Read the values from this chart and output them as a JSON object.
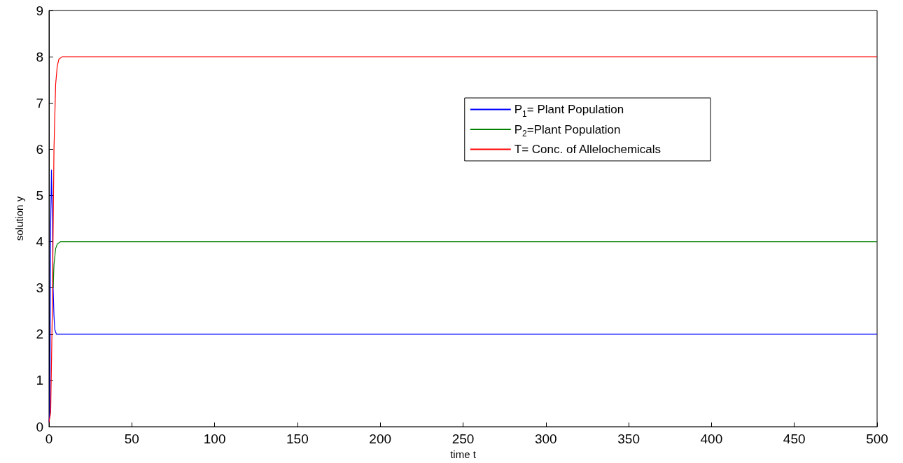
{
  "chart_data": {
    "type": "line",
    "xlabel": "time t",
    "ylabel": "solution y",
    "xlim": [
      0,
      500
    ],
    "xticks": [
      0,
      50,
      100,
      150,
      200,
      250,
      300,
      350,
      400,
      450,
      500
    ],
    "ylim": [
      0,
      9
    ],
    "yticks": [
      0,
      1,
      2,
      3,
      4,
      5,
      6,
      7,
      8,
      9
    ],
    "grid": false,
    "legend": "top right",
    "marker": "none",
    "line_style": "solid",
    "series": [
      {
        "name": "P$_{1}$= Plant Population",
        "color": "#0000ff",
        "x": [
          0,
          0.5,
          1,
          1.5,
          2,
          2.5,
          3,
          3.5,
          4.5,
          500
        ],
        "values": [
          0.1,
          0.3,
          4.4,
          5.55,
          4.6,
          3,
          2.4,
          2.1,
          2,
          2
        ]
      },
      {
        "name": "P$_{2}$=Plant Population",
        "color": "#008000",
        "x": [
          2.5,
          3,
          4,
          5,
          7,
          500
        ],
        "values": [
          3,
          3.5,
          3.85,
          3.95,
          4,
          4
        ]
      },
      {
        "name": "T= Conc. of Allelochemicals",
        "color": "#ff0000",
        "x": [
          0,
          1,
          2,
          3,
          4,
          5,
          6,
          8,
          500
        ],
        "values": [
          0.1,
          0.3,
          2.5,
          6,
          7.4,
          7.8,
          7.95,
          8,
          8
        ]
      }
    ]
  }
}
